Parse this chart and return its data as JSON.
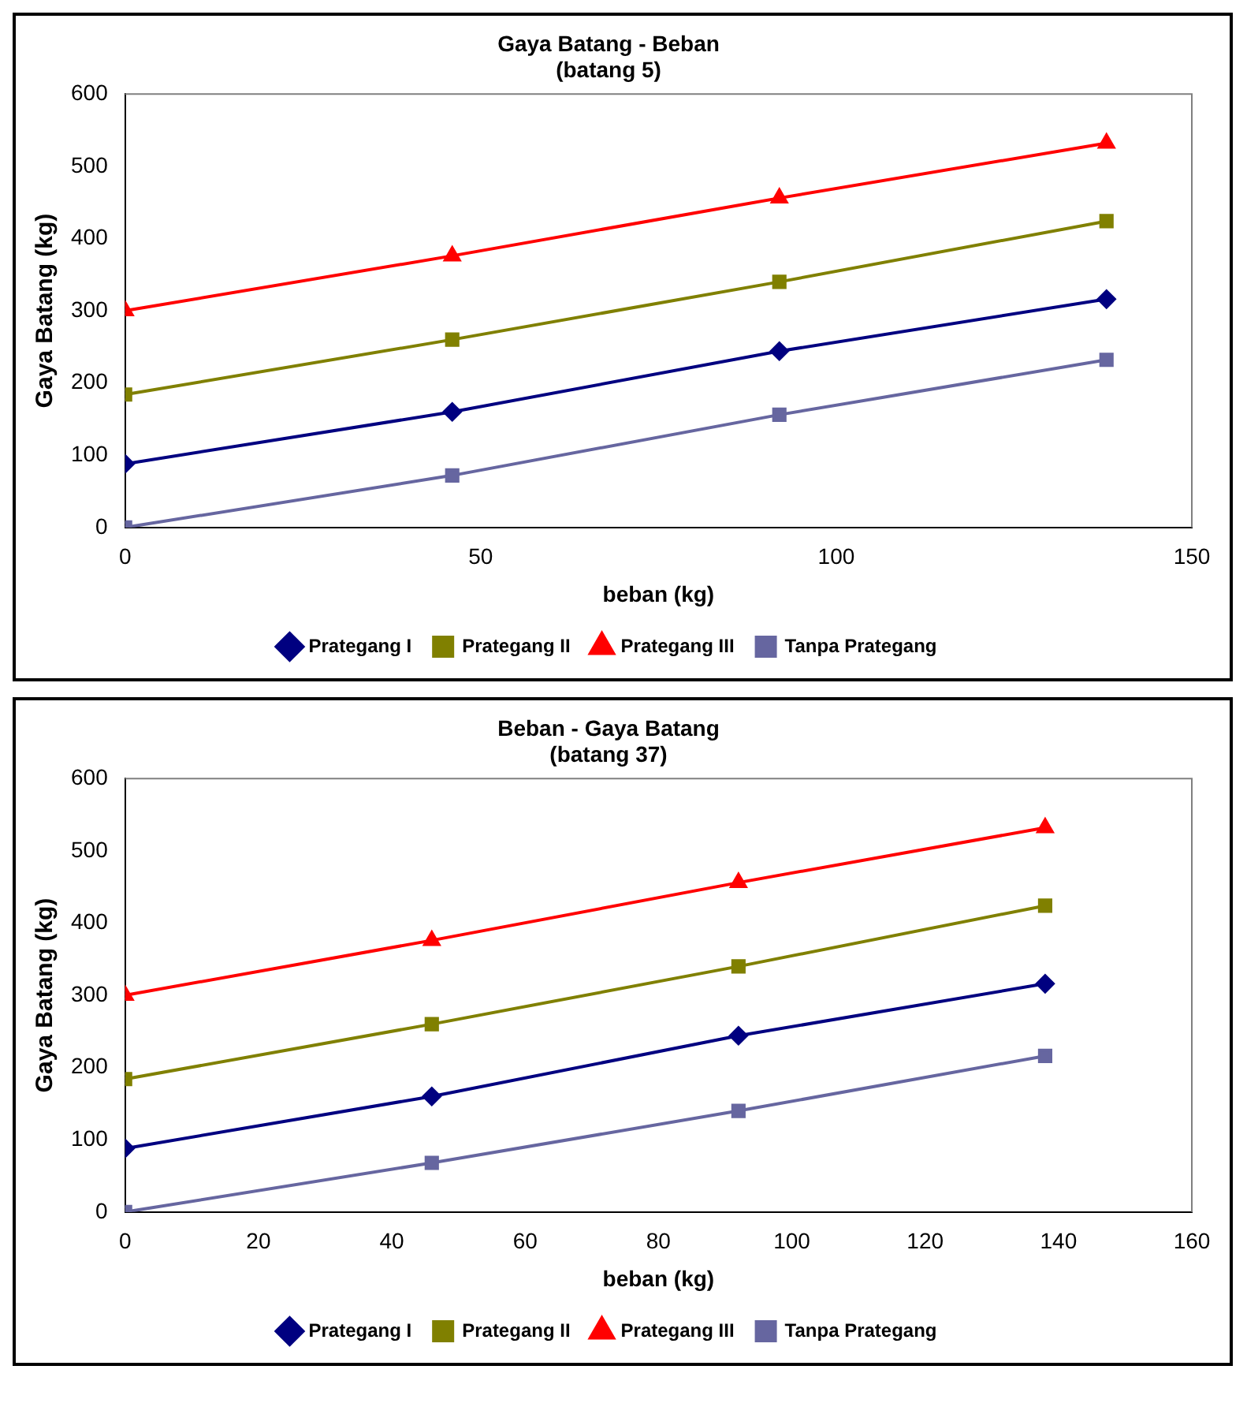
{
  "chart_data": [
    {
      "type": "line",
      "title": "Gaya Batang - Beban",
      "subtitle": "(batang 5)",
      "xlabel": "beban (kg)",
      "ylabel": "Gaya Batang (kg)",
      "xlim": [
        0,
        150
      ],
      "xticks": [
        0,
        50,
        100,
        150
      ],
      "ylim": [
        0,
        600
      ],
      "yticks": [
        0,
        100,
        200,
        300,
        400,
        500,
        600
      ],
      "grid": false,
      "legend": "bottom",
      "x": [
        0,
        46,
        92,
        138
      ],
      "series": [
        {
          "name": "Prategang I",
          "color": "#000080",
          "marker": "diamond",
          "values": [
            88,
            160,
            244,
            316
          ]
        },
        {
          "name": "Prategang II",
          "color": "#808000",
          "marker": "square",
          "values": [
            184,
            260,
            340,
            424
          ]
        },
        {
          "name": "Prategang III",
          "color": "#ff0000",
          "marker": "triangle",
          "values": [
            300,
            376,
            456,
            532
          ]
        },
        {
          "name": "Tanpa Prategang",
          "color": "#6666a0",
          "marker": "square",
          "values": [
            0,
            72,
            156,
            232
          ]
        }
      ]
    },
    {
      "type": "line",
      "title": "Beban - Gaya Batang",
      "subtitle": "(batang 37)",
      "xlabel": "beban (kg)",
      "ylabel": "Gaya Batang (kg)",
      "xlim": [
        0,
        160
      ],
      "xticks": [
        0,
        20,
        40,
        60,
        80,
        100,
        120,
        140,
        160
      ],
      "ylim": [
        0,
        600
      ],
      "yticks": [
        0,
        100,
        200,
        300,
        400,
        500,
        600
      ],
      "grid": false,
      "legend": "bottom",
      "x": [
        0,
        46,
        92,
        138
      ],
      "series": [
        {
          "name": "Prategang I",
          "color": "#000080",
          "marker": "diamond",
          "values": [
            88,
            160,
            244,
            316
          ]
        },
        {
          "name": "Prategang II",
          "color": "#808000",
          "marker": "square",
          "values": [
            184,
            260,
            340,
            424
          ]
        },
        {
          "name": "Prategang III",
          "color": "#ff0000",
          "marker": "triangle",
          "values": [
            300,
            376,
            456,
            532
          ]
        },
        {
          "name": "Tanpa Prategang",
          "color": "#6666a0",
          "marker": "square",
          "values": [
            0,
            68,
            140,
            216
          ]
        }
      ]
    }
  ]
}
